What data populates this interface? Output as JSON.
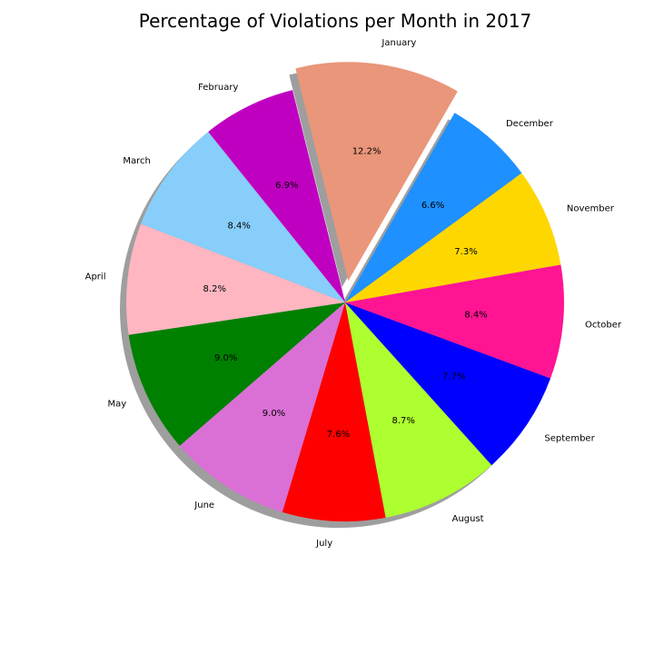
{
  "chart_data": {
    "type": "pie",
    "title": "Percentage of Violations per Month in 2017",
    "start_angle_deg": 60,
    "direction": "counterclockwise",
    "shadow": true,
    "exploded": [
      "January"
    ],
    "slices": [
      {
        "label": "January",
        "value": 12.2,
        "display": "12.2%",
        "color": "#E9967A"
      },
      {
        "label": "February",
        "value": 6.9,
        "display": "6.9%",
        "color": "#C000C0"
      },
      {
        "label": "March",
        "value": 8.4,
        "display": "8.4%",
        "color": "#87CEFA"
      },
      {
        "label": "April",
        "value": 8.2,
        "display": "8.2%",
        "color": "#FFB6C1"
      },
      {
        "label": "May",
        "value": 9.0,
        "display": "9.0%",
        "color": "#008000"
      },
      {
        "label": "June",
        "value": 9.0,
        "display": "9.0%",
        "color": "#DA70D6"
      },
      {
        "label": "July",
        "value": 7.6,
        "display": "7.6%",
        "color": "#FF0000"
      },
      {
        "label": "August",
        "value": 8.7,
        "display": "8.7%",
        "color": "#ADFF2F"
      },
      {
        "label": "September",
        "value": 7.7,
        "display": "7.7%",
        "color": "#0000FF"
      },
      {
        "label": "October",
        "value": 8.4,
        "display": "8.4%",
        "color": "#FF1493"
      },
      {
        "label": "November",
        "value": 7.3,
        "display": "7.3%",
        "color": "#FFD700"
      },
      {
        "label": "December",
        "value": 6.6,
        "display": "6.6%",
        "color": "#1E90FF"
      }
    ]
  }
}
